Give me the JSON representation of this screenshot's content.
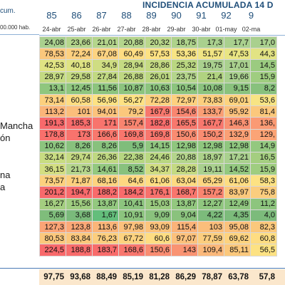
{
  "header": {
    "title": "INCIDENCIA ACUMULADA 14 D",
    "left_top": "cum.",
    "left_unit": "00.000 hab.",
    "day_numbers": [
      "85",
      "86",
      "87",
      "88",
      "89",
      "90",
      "91",
      "92",
      "9"
    ],
    "dates": [
      "24-abr",
      "25-abr",
      "26-abr",
      "27-abr",
      "28-abr",
      "29-abr",
      "30-abr",
      "01-may",
      "02-ma"
    ]
  },
  "regions": [
    {
      "label": "Mancha",
      "row": 7
    },
    {
      "label": "ón",
      "row": 8
    },
    {
      "label": "na",
      "row": 11
    },
    {
      "label": "a",
      "row": 12
    }
  ],
  "rows": [
    {
      "cells": [
        "24,08",
        "23,66",
        "21,01",
        "20,88",
        "20,32",
        "18,75",
        "17,3",
        "17,7",
        "17,0"
      ],
      "colors": [
        "#a9d08e",
        "#b4d58c",
        "#b4d58c",
        "#b4d58c",
        "#b9d78b",
        "#aed28b",
        "#a9d08e",
        "#a9d08e",
        "#a9d08e"
      ]
    },
    {
      "cells": [
        "78,53",
        "72,24",
        "67,08",
        "60,49",
        "57,53",
        "53,36",
        "51,57",
        "47,53",
        "44,3"
      ],
      "colors": [
        "#fbc87c",
        "#fdd07f",
        "#fdd381",
        "#fedd82",
        "#fde283",
        "#f7e484",
        "#f1e583",
        "#e9e583",
        "#e2e383"
      ]
    },
    {
      "cells": [
        "42,53",
        "40,18",
        "34,9",
        "28,94",
        "28,86",
        "25,32",
        "19,75",
        "17,01",
        "14,5"
      ],
      "colors": [
        "#e0e383",
        "#dfe383",
        "#cfdd82",
        "#c4da82",
        "#c4da82",
        "#bad781",
        "#a9d08e",
        "#a9d08e",
        "#9bcb80"
      ]
    },
    {
      "cells": [
        "28,97",
        "29,58",
        "27,84",
        "26,88",
        "26,01",
        "23,75",
        "21,4",
        "19,66",
        "15,9"
      ],
      "colors": [
        "#c4da82",
        "#c4da82",
        "#c1d982",
        "#bfd882",
        "#bbd781",
        "#b4d58c",
        "#b0d380",
        "#a9d08e",
        "#9fcd80"
      ]
    },
    {
      "cells": [
        "13,1",
        "12,45",
        "11,56",
        "10,87",
        "10,63",
        "10,54",
        "10,08",
        "9,15",
        "8,2"
      ],
      "colors": [
        "#8fc67e",
        "#8fc67e",
        "#8cc47e",
        "#8cc47e",
        "#8cc47e",
        "#8cc47e",
        "#8bc37e",
        "#8ac27d",
        "#88c17d"
      ]
    },
    {
      "cells": [
        "73,14",
        "60,58",
        "56,96",
        "56,27",
        "72,28",
        "72,97",
        "73,83",
        "69,01",
        "53,6"
      ],
      "colors": [
        "#fcd07e",
        "#fedd82",
        "#fde283",
        "#fde283",
        "#fdd17f",
        "#fdd07f",
        "#fccf7e",
        "#fdd37f",
        "#f7e484"
      ]
    },
    {
      "cells": [
        "113,2",
        "101",
        "94,01",
        "79,2",
        "167,9",
        "154,6",
        "133,7",
        "95,92",
        "81,4"
      ],
      "colors": [
        "#fbb579",
        "#fbbe7b",
        "#fcc37c",
        "#fbc87c",
        "#f8776d",
        "#f98670",
        "#fa9e74",
        "#fcc17c",
        "#fbc87c"
      ]
    },
    {
      "cells": [
        "191,3",
        "185,3",
        "171",
        "157,4",
        "182,8",
        "165,5",
        "167,7",
        "146,3",
        "136,"
      ],
      "colors": [
        "#f8696b",
        "#f86c6b",
        "#f8746d",
        "#f9846f",
        "#f86c6b",
        "#f8786d",
        "#f8776d",
        "#f99071",
        "#fa9a74"
      ]
    },
    {
      "cells": [
        "178,8",
        "173",
        "166,6",
        "169,8",
        "169,8",
        "150,6",
        "150,2",
        "132,9",
        "129,"
      ],
      "colors": [
        "#f8706c",
        "#f8736d",
        "#f8786d",
        "#f8766d",
        "#f8766d",
        "#f98c71",
        "#f98c71",
        "#faa075",
        "#fba476"
      ]
    },
    {
      "cells": [
        "10,62",
        "8,26",
        "8,26",
        "5,9",
        "14,15",
        "12,98",
        "12,98",
        "12,98",
        "14,9"
      ],
      "colors": [
        "#8cc47e",
        "#88c17d",
        "#88c17d",
        "#7fbd7b",
        "#90c67f",
        "#8fc67e",
        "#8fc67e",
        "#8fc67e",
        "#93c87f"
      ]
    },
    {
      "cells": [
        "32,14",
        "29,74",
        "26,36",
        "22,38",
        "24,46",
        "20,88",
        "18,97",
        "17,21",
        "16,5"
      ],
      "colors": [
        "#c8dc82",
        "#c4da82",
        "#bfd882",
        "#b6d681",
        "#b9d781",
        "#b4d58c",
        "#acd18a",
        "#a9d08e",
        "#a4ce80"
      ]
    },
    {
      "cells": [
        "36,15",
        "21,73",
        "14,61",
        "8,52",
        "34,37",
        "28,28",
        "19,11",
        "14,52",
        "15,9"
      ],
      "colors": [
        "#d3de82",
        "#b4d58c",
        "#93c87f",
        "#88c17d",
        "#cfdd82",
        "#c4da82",
        "#a9d08e",
        "#93c87f",
        "#9fcd80"
      ]
    },
    {
      "cells": [
        "73,57",
        "71,87",
        "68,16",
        "64,6",
        "61,06",
        "63,04",
        "65,29",
        "61,06",
        "58,3"
      ],
      "colors": [
        "#fcd07e",
        "#fcd07e",
        "#fdd37f",
        "#fed881",
        "#fedd82",
        "#fdda81",
        "#fdd681",
        "#fedd82",
        "#fde283"
      ]
    },
    {
      "cells": [
        "201,2",
        "194,7",
        "188,2",
        "184,2",
        "176,1",
        "168,7",
        "157,2",
        "83,97",
        "75,8"
      ],
      "colors": [
        "#f8696b",
        "#f8696b",
        "#f86b6b",
        "#f86b6b",
        "#f8716c",
        "#f8766d",
        "#f9846f",
        "#fbc87c",
        "#fbcd7e"
      ]
    },
    {
      "cells": [
        "16,27",
        "15,56",
        "13,87",
        "10,41",
        "15,03",
        "13,87",
        "12,27",
        "12,49",
        "11,2"
      ],
      "colors": [
        "#a4ce80",
        "#9fcd80",
        "#93c87f",
        "#8cc47e",
        "#9bcb80",
        "#93c87f",
        "#8fc67e",
        "#8fc67e",
        "#8dc57e"
      ]
    },
    {
      "cells": [
        "5,69",
        "3,68",
        "1,67",
        "10,91",
        "9,09",
        "9,04",
        "4,22",
        "4,35",
        "4,0"
      ],
      "colors": [
        "#7fbd7b",
        "#7aba7b",
        "#63be7b",
        "#8cc47e",
        "#8ac27d",
        "#8ac27d",
        "#7cbb7b",
        "#7cbb7b",
        "#7cbb7b"
      ]
    },
    {
      "cells": [
        "127,3",
        "123,8",
        "113,6",
        "97,98",
        "93,09",
        "115,4",
        "103",
        "95,08",
        "82,3"
      ],
      "colors": [
        "#fba476",
        "#fba877",
        "#fbb579",
        "#fcc17c",
        "#fcc37c",
        "#fbb379",
        "#fbbe7b",
        "#fcc17c",
        "#fbc87c"
      ]
    },
    {
      "cells": [
        "80,53",
        "83,84",
        "76,23",
        "67,72",
        "60,6",
        "97,07",
        "77,59",
        "69,62",
        "60,8"
      ],
      "colors": [
        "#fbc87c",
        "#fbc87c",
        "#fcce7e",
        "#fdd37f",
        "#fedd82",
        "#fcc17c",
        "#fcce7e",
        "#fdd37f",
        "#fedd82"
      ]
    },
    {
      "cells": [
        "224,5",
        "188,8",
        "183,7",
        "168,6",
        "150,6",
        "143",
        "109,4",
        "85,11",
        "56,5"
      ],
      "colors": [
        "#f8696b",
        "#f86b6b",
        "#f86c6b",
        "#f8766d",
        "#f98c71",
        "#f99372",
        "#fbb87a",
        "#fbc87c",
        "#fde283"
      ]
    }
  ],
  "totals": [
    "97,75",
    "93,68",
    "88,49",
    "85,19",
    "81,28",
    "86,29",
    "78,87",
    "63,78",
    "57,8"
  ]
}
